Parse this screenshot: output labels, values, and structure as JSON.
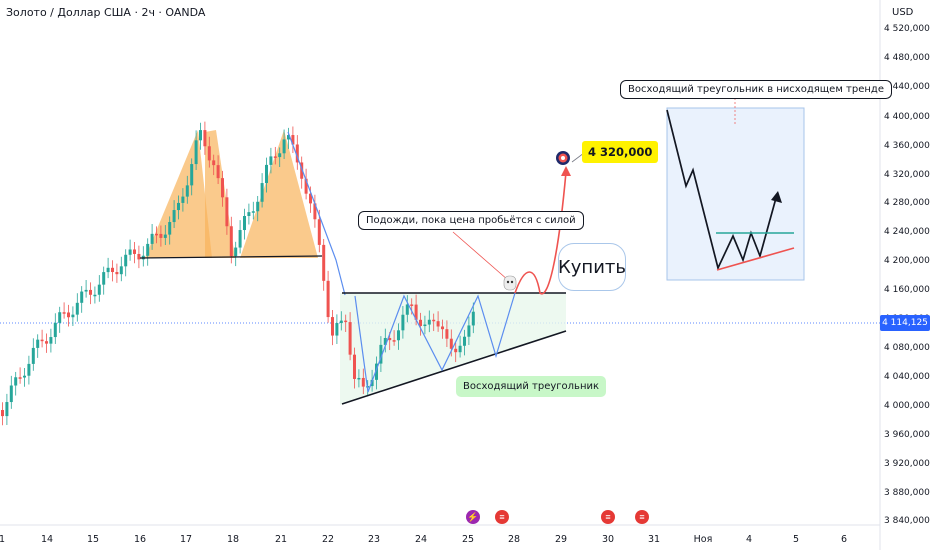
{
  "header": {
    "symbol": "Золото / Доллар США · 2ч · OANDA",
    "currency": "USD"
  },
  "current_price": {
    "label": "4 114,125",
    "value": 4114.125
  },
  "annotations": {
    "buy": "Купить",
    "target": "4 320,000",
    "wait": "Подожди, пока цена пробьётся с силой",
    "triangle": "Восходящий треугольник",
    "inset_title": "Восходящий треугольник в нисходящем тренде"
  },
  "colors": {
    "up": "#26a69a",
    "down": "#ef5350",
    "accent": "#2962ff",
    "pattern_fill": "#f8b45b",
    "triangle_fill": "#e8f7ec",
    "target": "#fff200"
  },
  "events": [
    {
      "icon": "lightning-icon",
      "color": "#9c27b0"
    },
    {
      "icon": "us-flag-icon",
      "color": "#e53935"
    },
    {
      "icon": "us-flag-icon",
      "color": "#e53935"
    },
    {
      "icon": "us-flag-icon",
      "color": "#e53935"
    }
  ],
  "chart_data": {
    "type": "candlestick",
    "ylim": [
      3820,
      4540
    ],
    "y_ticks": [
      "4 520,000",
      "4 480,000",
      "4 440,000",
      "4 400,000",
      "4 360,000",
      "4 320,000",
      "4 280,000",
      "4 240,000",
      "4 200,000",
      "4 160,000",
      "4 120,000",
      "4 080,000",
      "4 040,000",
      "4 000,000",
      "3 960,000",
      "3 920,000",
      "3 880,000",
      "3 840,000"
    ],
    "x_ticks": [
      "1",
      "14",
      "15",
      "16",
      "17",
      "18",
      "21",
      "22",
      "23",
      "24",
      "25",
      "28",
      "29",
      "30",
      "31",
      "Ноя",
      "4",
      "5",
      "6"
    ],
    "series": [
      {
        "values": []
      }
    ]
  }
}
